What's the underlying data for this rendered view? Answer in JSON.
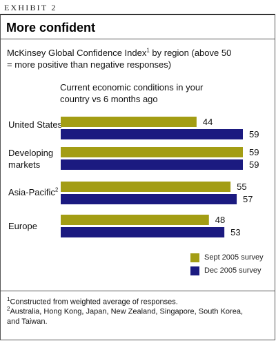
{
  "exhibit_label": "EXHIBIT 2",
  "title": "More confident",
  "subtitle": {
    "text_before": "McKinsey Global Confidence Index",
    "footnote_mark": "1",
    "text_after": " by region (above 50 = more positive than negative responses)"
  },
  "question": "Current economic conditions in your country vs 6 months ago",
  "colors": {
    "sept": "#a39d14",
    "dec": "#1b1a80"
  },
  "chart_data": {
    "type": "bar",
    "orientation": "horizontal",
    "categories": [
      "United States",
      "Developing markets",
      "Asia-Pacific",
      "Europe"
    ],
    "series": [
      {
        "name": "Sept 2005 survey",
        "values": [
          44,
          59,
          55,
          48
        ]
      },
      {
        "name": "Dec 2005 survey",
        "values": [
          59,
          59,
          57,
          53
        ]
      }
    ],
    "legend_position": "bottom-right"
  },
  "category_labels": [
    {
      "line1": "United States",
      "line2": "",
      "sup": ""
    },
    {
      "line1": "Developing",
      "line2": "markets",
      "sup": ""
    },
    {
      "line1": "Asia-Pacific",
      "line2": "",
      "sup": "2"
    },
    {
      "line1": "Europe",
      "line2": "",
      "sup": ""
    }
  ],
  "footnotes": [
    {
      "mark": "1",
      "text": "Constructed from weighted average of responses."
    },
    {
      "mark": "2",
      "text": "Australia, Hong Kong, Japan, New Zealand, Singapore, South Korea, and Taiwan."
    }
  ]
}
